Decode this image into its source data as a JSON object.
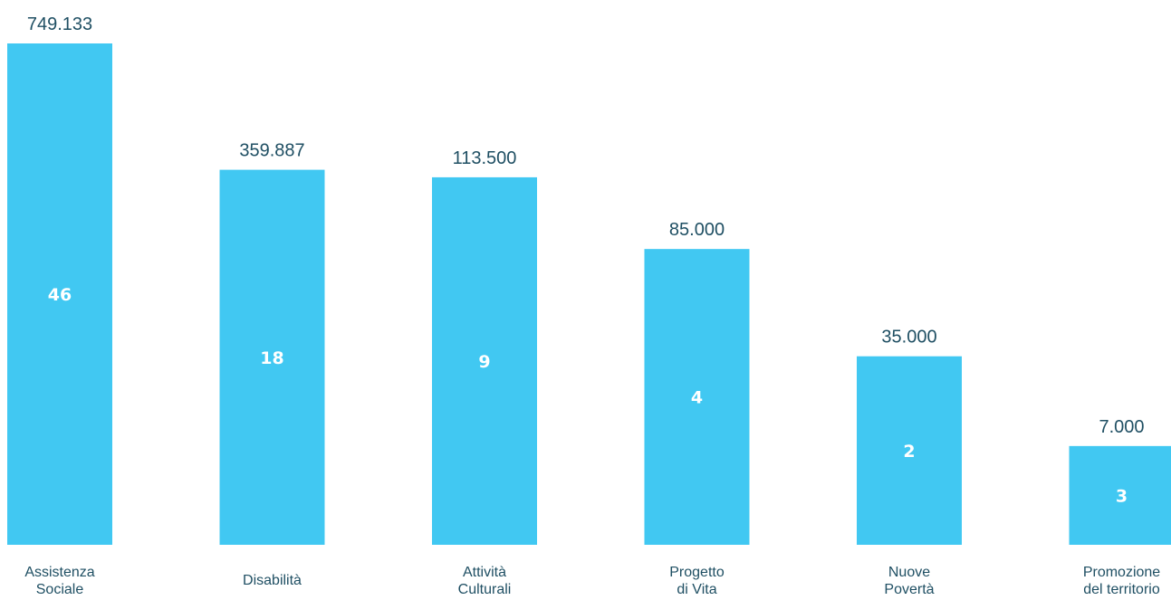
{
  "chart_data": {
    "type": "bar",
    "title": "",
    "xlabel": "",
    "ylabel": "",
    "grid": false,
    "legend": "none",
    "bar_color": "#41c8f2",
    "value_label_color": "#1f4f63",
    "count_label_color": "#ffffff",
    "categories": [
      [
        "Assistenza",
        "Sociale"
      ],
      [
        "Disabilità"
      ],
      [
        "Attività",
        "Culturali"
      ],
      [
        "Progetto",
        "di Vita"
      ],
      [
        "Nuove",
        "Povertà"
      ],
      [
        "Promozione",
        "del territorio"
      ]
    ],
    "value_labels": [
      "749.133",
      "359.887",
      "113.500",
      "85.000",
      "35.000",
      "7.000"
    ],
    "counts": [
      46,
      18,
      9,
      4,
      2,
      3
    ],
    "bar_level_fraction": [
      1.0,
      0.748,
      0.733,
      0.59,
      0.376,
      0.197
    ]
  }
}
